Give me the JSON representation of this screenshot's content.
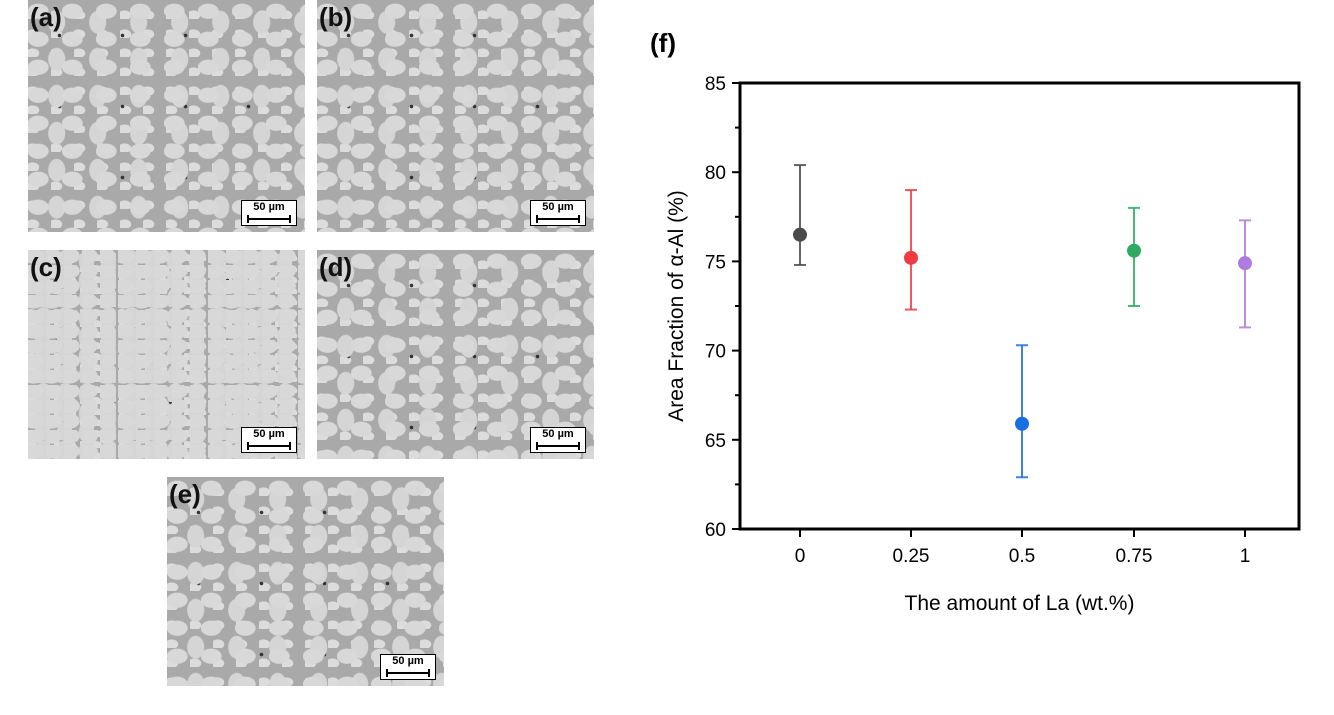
{
  "panels": [
    {
      "label": "(a)",
      "scale": "50 µm"
    },
    {
      "label": "(b)",
      "scale": "50 µm"
    },
    {
      "label": "(c)",
      "scale": "50 µm"
    },
    {
      "label": "(d)",
      "scale": "50 µm"
    },
    {
      "label": "(e)",
      "scale": "50 µm"
    }
  ],
  "chart_data": {
    "type": "scatter",
    "panel_label": "(f)",
    "title": "",
    "xlabel": "The amount of La (wt.%)",
    "ylabel": "Area Fraction of α-Al (%)",
    "ylim": [
      60,
      85
    ],
    "yticks": [
      "60",
      "65",
      "70",
      "75",
      "80",
      "85"
    ],
    "categories": [
      "0",
      "0.25",
      "0.5",
      "0.75",
      "1"
    ],
    "values": [
      76.5,
      75.2,
      65.9,
      75.6,
      74.9
    ],
    "error_upper": [
      80.4,
      79.0,
      70.3,
      78.0,
      77.3
    ],
    "error_lower": [
      74.8,
      72.3,
      62.9,
      72.5,
      71.3
    ],
    "colors": [
      "#4a4a4a",
      "#ef3b3f",
      "#1a6fe0",
      "#2eaa62",
      "#b07be0"
    ]
  }
}
